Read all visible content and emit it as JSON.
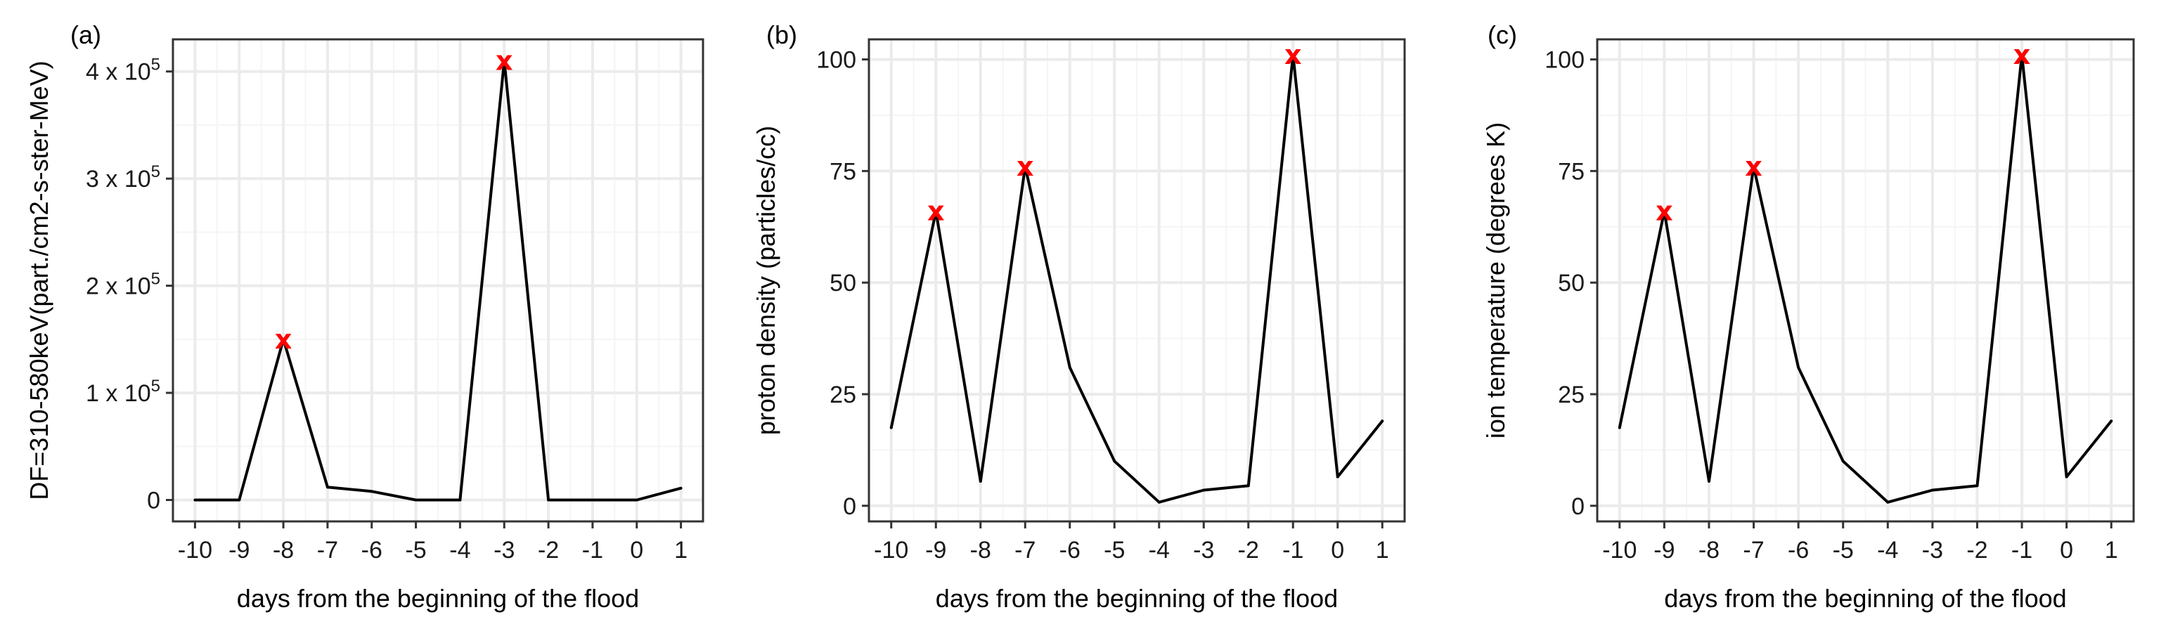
{
  "chart_data": [
    {
      "type": "line",
      "panel_label": "(a)",
      "xlabel": "days from the beginning of the flood",
      "ylabel": "DF=310-580keV(part./cm2-s-ster-MeV)",
      "x": [
        -10,
        -9,
        -8,
        -7,
        -6,
        -5,
        -4,
        -3,
        -2,
        -1,
        0,
        1
      ],
      "y": [
        0,
        0,
        150000,
        12000,
        8000,
        0,
        0,
        410000,
        0,
        0,
        0,
        11000
      ],
      "xlim": [
        -10.5,
        1.5
      ],
      "ylim": [
        -20000,
        430000
      ],
      "xticks": [
        "-10",
        "-9",
        "-8",
        "-7",
        "-6",
        "-5",
        "-4",
        "-3",
        "-2",
        "-1",
        "0",
        "1"
      ],
      "yticks": [
        {
          "value": 0,
          "label": "0",
          "base": "",
          "exp": ""
        },
        {
          "value": 100000,
          "label": "",
          "base": "1 x 10",
          "exp": "5"
        },
        {
          "value": 200000,
          "label": "",
          "base": "2 x 10",
          "exp": "5"
        },
        {
          "value": 300000,
          "label": "",
          "base": "3 x 10",
          "exp": "5"
        },
        {
          "value": 400000,
          "label": "",
          "base": "4 x 10",
          "exp": "5"
        }
      ],
      "peaks": [
        {
          "x": -8,
          "y": 150000,
          "symbol": "x"
        },
        {
          "x": -3,
          "y": 410000,
          "symbol": "x"
        }
      ],
      "grid": true,
      "legend": "none"
    },
    {
      "type": "line",
      "panel_label": "(b)",
      "xlabel": "days from the beginning of the flood",
      "ylabel": "proton density (particles/cc)",
      "x": [
        -10,
        -9,
        -8,
        -7,
        -6,
        -5,
        -4,
        -3,
        -2,
        -1,
        0,
        1
      ],
      "y": [
        17.5,
        66,
        5.5,
        76,
        31,
        10,
        0.8,
        3.5,
        4.5,
        101,
        6.5,
        19
      ],
      "xlim": [
        -10.5,
        1.5
      ],
      "ylim": [
        -3.5,
        104.5
      ],
      "xticks": [
        "-10",
        "-9",
        "-8",
        "-7",
        "-6",
        "-5",
        "-4",
        "-3",
        "-2",
        "-1",
        "0",
        "1"
      ],
      "yticks": [
        {
          "value": 0,
          "label": "0"
        },
        {
          "value": 25,
          "label": "25"
        },
        {
          "value": 50,
          "label": "50"
        },
        {
          "value": 75,
          "label": "75"
        },
        {
          "value": 100,
          "label": "100"
        }
      ],
      "peaks": [
        {
          "x": -9,
          "y": 66,
          "symbol": "x"
        },
        {
          "x": -7,
          "y": 76,
          "symbol": "x"
        },
        {
          "x": -1,
          "y": 101,
          "symbol": "x"
        }
      ],
      "grid": true,
      "legend": "none"
    },
    {
      "type": "line",
      "panel_label": "(c)",
      "xlabel": "days from the beginning of the flood",
      "ylabel": "ion temperature (degrees K)",
      "x": [
        -10,
        -9,
        -8,
        -7,
        -6,
        -5,
        -4,
        -3,
        -2,
        -1,
        0,
        1
      ],
      "y": [
        17.5,
        66,
        5.5,
        76,
        31,
        10,
        0.8,
        3.5,
        4.5,
        101,
        6.5,
        19
      ],
      "xlim": [
        -10.5,
        1.5
      ],
      "ylim": [
        -3.5,
        104.5
      ],
      "xticks": [
        "-10",
        "-9",
        "-8",
        "-7",
        "-6",
        "-5",
        "-4",
        "-3",
        "-2",
        "-1",
        "0",
        "1"
      ],
      "yticks": [
        {
          "value": 0,
          "label": "0"
        },
        {
          "value": 25,
          "label": "25"
        },
        {
          "value": 50,
          "label": "50"
        },
        {
          "value": 75,
          "label": "75"
        },
        {
          "value": 100,
          "label": "100"
        }
      ],
      "peaks": [
        {
          "x": -9,
          "y": 66,
          "symbol": "x"
        },
        {
          "x": -7,
          "y": 76,
          "symbol": "x"
        },
        {
          "x": -1,
          "y": 101,
          "symbol": "x"
        }
      ],
      "grid": true,
      "legend": "none"
    }
  ],
  "colors": {
    "line": "#000000",
    "peak_marker": "#ff0000",
    "grid_major": "#ebebeb",
    "grid_minor": "#f5f5f5",
    "panel_border": "#333333",
    "background": "#ffffff"
  }
}
